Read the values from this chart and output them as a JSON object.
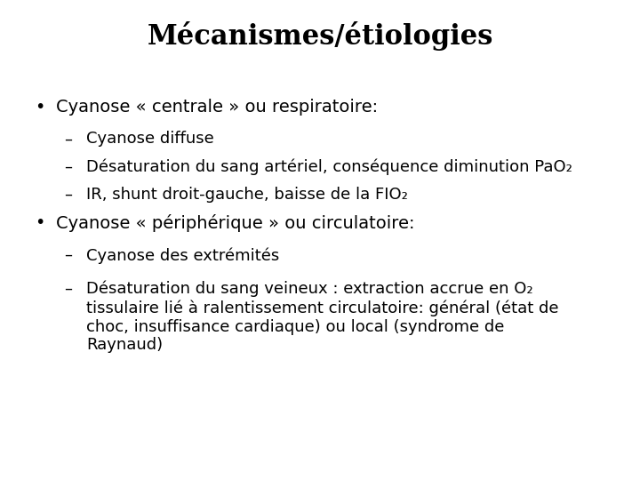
{
  "background_color": "#ffffff",
  "title": "Mécanismes/étiologies",
  "title_fontsize": 22,
  "title_fontweight": "bold",
  "title_fontfamily": "serif",
  "body_fontsize": 13,
  "body_fontfamily": "sans-serif",
  "text_color": "#000000",
  "bullet1_header": "Cyanose « centrale » ou respiratoire:",
  "bullet1_items": [
    "Cyanose diffuse",
    "Désaturation du sang artériel, conséquence diminution PaO₂",
    "IR, shunt droit-gauche, baisse de la FIO₂"
  ],
  "bullet2_header": "Cyanose « périphérique » ou circulatoire:",
  "bullet2_items": [
    "Cyanose des extrémités",
    "Désaturation du sang veineux : extraction accrue en O₂\ntissulaire lié à ralentissement circulatoire: général (état de\nchoc, insuffisance cardiaque) ou local (syndrome de\nRaynaud)"
  ]
}
